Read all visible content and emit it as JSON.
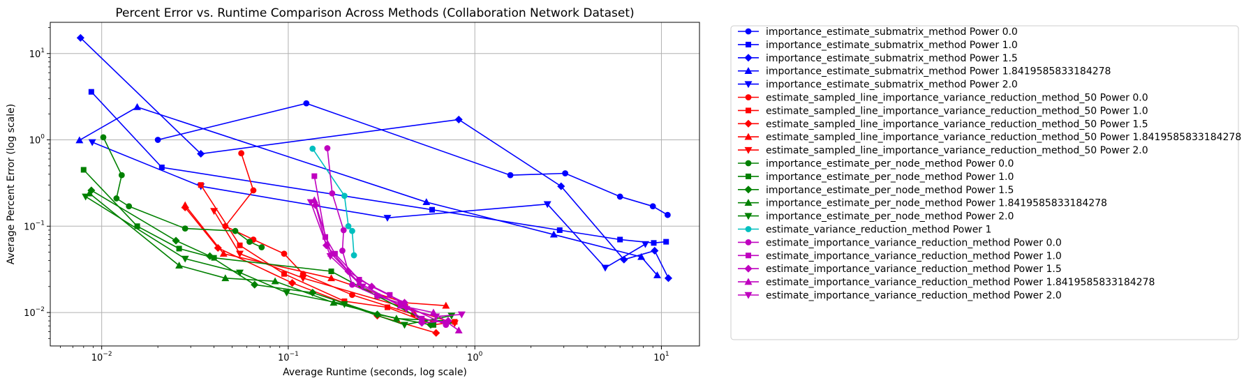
{
  "chart_data": {
    "type": "line",
    "title": "Percent Error vs. Runtime Comparison Across Methods (Collaboration Network Dataset)",
    "xlabel": "Average Runtime (seconds, log scale)",
    "ylabel": "Average Percent Error (log scale)",
    "xscale": "log",
    "yscale": "log",
    "xlim": [
      0.0053,
      16
    ],
    "ylim": [
      0.0041,
      23
    ],
    "xticks": [
      {
        "value": 0.01,
        "base": "10",
        "exp": "−2"
      },
      {
        "value": 0.1,
        "base": "10",
        "exp": "−1"
      },
      {
        "value": 1,
        "base": "10",
        "exp": "0"
      },
      {
        "value": 10,
        "base": "10",
        "exp": "1"
      }
    ],
    "yticks": [
      {
        "value": 0.01,
        "base": "10",
        "exp": "−2"
      },
      {
        "value": 0.1,
        "base": "10",
        "exp": "−1"
      },
      {
        "value": 1,
        "base": "10",
        "exp": "0"
      },
      {
        "value": 10,
        "base": "10",
        "exp": "1"
      }
    ],
    "grid": true,
    "legend_position": "outside-right",
    "series": [
      {
        "name": "importance_estimate_submatrix_method Power 0.0",
        "color": "#0000ff",
        "marker": "circle",
        "points": [
          [
            0.02,
            1.0
          ],
          [
            0.125,
            2.65
          ],
          [
            1.55,
            0.39
          ],
          [
            3.05,
            0.41
          ],
          [
            6.0,
            0.22
          ],
          [
            9.0,
            0.17
          ],
          [
            10.8,
            0.135
          ]
        ]
      },
      {
        "name": "importance_estimate_submatrix_method Power 1.0",
        "color": "#0000ff",
        "marker": "square",
        "points": [
          [
            0.0088,
            3.6
          ],
          [
            0.021,
            0.48
          ],
          [
            0.59,
            0.155
          ],
          [
            2.85,
            0.09
          ],
          [
            6.0,
            0.07
          ],
          [
            9.1,
            0.064
          ],
          [
            10.6,
            0.066
          ]
        ]
      },
      {
        "name": "importance_estimate_submatrix_method Power 1.5",
        "color": "#0000ff",
        "marker": "diamond",
        "points": [
          [
            0.0077,
            15.2
          ],
          [
            0.034,
            0.69
          ],
          [
            0.82,
            1.72
          ],
          [
            2.9,
            0.29
          ],
          [
            6.3,
            0.041
          ],
          [
            9.2,
            0.052
          ],
          [
            10.9,
            0.025
          ]
        ]
      },
      {
        "name": "importance_estimate_submatrix_method Power 1.8419585833184278",
        "color": "#0000ff",
        "marker": "triangle-up",
        "points": [
          [
            0.0076,
            0.99
          ],
          [
            0.0155,
            2.4
          ],
          [
            0.55,
            0.19
          ],
          [
            2.65,
            0.08
          ],
          [
            7.8,
            0.044
          ],
          [
            9.5,
            0.027
          ]
        ]
      },
      {
        "name": "importance_estimate_submatrix_method Power 2.0",
        "color": "#0000ff",
        "marker": "triangle-down",
        "points": [
          [
            0.0089,
            0.94
          ],
          [
            0.034,
            0.29
          ],
          [
            0.34,
            0.125
          ],
          [
            2.45,
            0.18
          ],
          [
            5.0,
            0.033
          ],
          [
            8.2,
            0.062
          ]
        ]
      },
      {
        "name": "estimate_sampled_line_importance_variance_reduction_method_50 Power 0.0",
        "color": "#ff0000",
        "marker": "circle",
        "points": [
          [
            0.056,
            0.7
          ],
          [
            0.065,
            0.26
          ],
          [
            0.046,
            0.1
          ],
          [
            0.065,
            0.07
          ],
          [
            0.095,
            0.048
          ],
          [
            0.12,
            0.028
          ],
          [
            0.22,
            0.016
          ],
          [
            0.47,
            0.0095
          ],
          [
            0.6,
            0.0078
          ]
        ]
      },
      {
        "name": "estimate_sampled_line_importance_variance_reduction_method_50 Power 1.0",
        "color": "#ff0000",
        "marker": "square",
        "points": [
          [
            0.034,
            0.3
          ],
          [
            0.055,
            0.06
          ],
          [
            0.095,
            0.028
          ],
          [
            0.2,
            0.0135
          ],
          [
            0.34,
            0.0115
          ],
          [
            0.6,
            0.0072
          ],
          [
            0.78,
            0.0078
          ]
        ]
      },
      {
        "name": "estimate_sampled_line_importance_variance_reduction_method_50 Power 1.5",
        "color": "#ff0000",
        "marker": "diamond",
        "points": [
          [
            0.028,
            0.165
          ],
          [
            0.042,
            0.056
          ],
          [
            0.105,
            0.022
          ],
          [
            0.3,
            0.0092
          ],
          [
            0.62,
            0.0058
          ]
        ]
      },
      {
        "name": "estimate_sampled_line_importance_variance_reduction_method_50 Power 1.8419585833184278",
        "color": "#ff0000",
        "marker": "triangle-up",
        "points": [
          [
            0.028,
            0.175
          ],
          [
            0.045,
            0.048
          ],
          [
            0.17,
            0.025
          ],
          [
            0.42,
            0.013
          ],
          [
            0.7,
            0.012
          ]
        ]
      },
      {
        "name": "estimate_sampled_line_importance_variance_reduction_method_50 Power 2.0",
        "color": "#ff0000",
        "marker": "triangle-down",
        "points": [
          [
            0.04,
            0.15
          ],
          [
            0.055,
            0.048
          ],
          [
            0.12,
            0.025
          ],
          [
            0.42,
            0.0115
          ],
          [
            0.78,
            0.0075
          ]
        ]
      },
      {
        "name": "importance_estimate_per_node_method Power 0.0",
        "color": "#008000",
        "marker": "circle",
        "points": [
          [
            0.0102,
            1.07
          ],
          [
            0.0128,
            0.39
          ],
          [
            0.012,
            0.21
          ],
          [
            0.014,
            0.17
          ],
          [
            0.028,
            0.094
          ],
          [
            0.052,
            0.088
          ],
          [
            0.062,
            0.066
          ],
          [
            0.072,
            0.057
          ]
        ]
      },
      {
        "name": "importance_estimate_per_node_method Power 1.0",
        "color": "#008000",
        "marker": "square",
        "points": [
          [
            0.008,
            0.45
          ],
          [
            0.0155,
            0.1
          ],
          [
            0.026,
            0.055
          ],
          [
            0.04,
            0.043
          ],
          [
            0.17,
            0.03
          ],
          [
            0.3,
            0.0155
          ],
          [
            0.6,
            0.0072
          ]
        ]
      },
      {
        "name": "importance_estimate_per_node_method Power 1.5",
        "color": "#008000",
        "marker": "diamond",
        "points": [
          [
            0.0088,
            0.26
          ],
          [
            0.025,
            0.068
          ],
          [
            0.038,
            0.045
          ],
          [
            0.066,
            0.021
          ],
          [
            0.135,
            0.017
          ],
          [
            0.3,
            0.0095
          ],
          [
            0.58,
            0.0072
          ]
        ]
      },
      {
        "name": "importance_estimate_per_node_method Power 1.8419585833184278",
        "color": "#008000",
        "marker": "triangle-up",
        "points": [
          [
            0.0086,
            0.24
          ],
          [
            0.026,
            0.035
          ],
          [
            0.046,
            0.025
          ],
          [
            0.085,
            0.023
          ],
          [
            0.175,
            0.013
          ],
          [
            0.38,
            0.0085
          ],
          [
            0.72,
            0.008
          ]
        ]
      },
      {
        "name": "importance_estimate_per_node_method Power 2.0",
        "color": "#008000",
        "marker": "triangle-down",
        "points": [
          [
            0.0082,
            0.22
          ],
          [
            0.028,
            0.042
          ],
          [
            0.055,
            0.029
          ],
          [
            0.098,
            0.017
          ],
          [
            0.2,
            0.0125
          ],
          [
            0.42,
            0.0072
          ],
          [
            0.75,
            0.0092
          ]
        ]
      },
      {
        "name": "estimate_variance_reduction_method Power 1",
        "color": "#00bfbf",
        "marker": "circle",
        "points": [
          [
            0.135,
            0.79
          ],
          [
            0.2,
            0.225
          ],
          [
            0.21,
            0.1
          ],
          [
            0.22,
            0.088
          ],
          [
            0.225,
            0.046
          ]
        ]
      },
      {
        "name": "estimate_importance_variance_reduction_method Power 0.0",
        "color": "#bf00bf",
        "marker": "circle",
        "points": [
          [
            0.162,
            0.8
          ],
          [
            0.172,
            0.24
          ],
          [
            0.198,
            0.09
          ],
          [
            0.195,
            0.052
          ],
          [
            0.22,
            0.021
          ],
          [
            0.3,
            0.0155
          ],
          [
            0.4,
            0.0128
          ],
          [
            0.7,
            0.0072
          ]
        ]
      },
      {
        "name": "estimate_importance_variance_reduction_method Power 1.0",
        "color": "#bf00bf",
        "marker": "square",
        "points": [
          [
            0.138,
            0.38
          ],
          [
            0.158,
            0.075
          ],
          [
            0.178,
            0.048
          ],
          [
            0.24,
            0.024
          ],
          [
            0.35,
            0.016
          ],
          [
            0.52,
            0.0085
          ],
          [
            0.7,
            0.0076
          ]
        ]
      },
      {
        "name": "estimate_importance_variance_reduction_method Power 1.5",
        "color": "#bf00bf",
        "marker": "diamond",
        "points": [
          [
            0.14,
            0.175
          ],
          [
            0.16,
            0.06
          ],
          [
            0.21,
            0.03
          ],
          [
            0.28,
            0.02
          ],
          [
            0.42,
            0.013
          ],
          [
            0.52,
            0.0076
          ],
          [
            0.72,
            0.008
          ]
        ]
      },
      {
        "name": "estimate_importance_variance_reduction_method Power 1.8419585833184278",
        "color": "#bf00bf",
        "marker": "triangle-up",
        "points": [
          [
            0.138,
            0.2
          ],
          [
            0.17,
            0.048
          ],
          [
            0.24,
            0.022
          ],
          [
            0.4,
            0.012
          ],
          [
            0.6,
            0.01
          ],
          [
            0.82,
            0.0062
          ]
        ]
      },
      {
        "name": "estimate_importance_variance_reduction_method Power 2.0",
        "color": "#bf00bf",
        "marker": "triangle-down",
        "points": [
          [
            0.132,
            0.19
          ],
          [
            0.168,
            0.045
          ],
          [
            0.25,
            0.02
          ],
          [
            0.43,
            0.011
          ],
          [
            0.62,
            0.009
          ],
          [
            0.85,
            0.0095
          ]
        ]
      }
    ]
  }
}
